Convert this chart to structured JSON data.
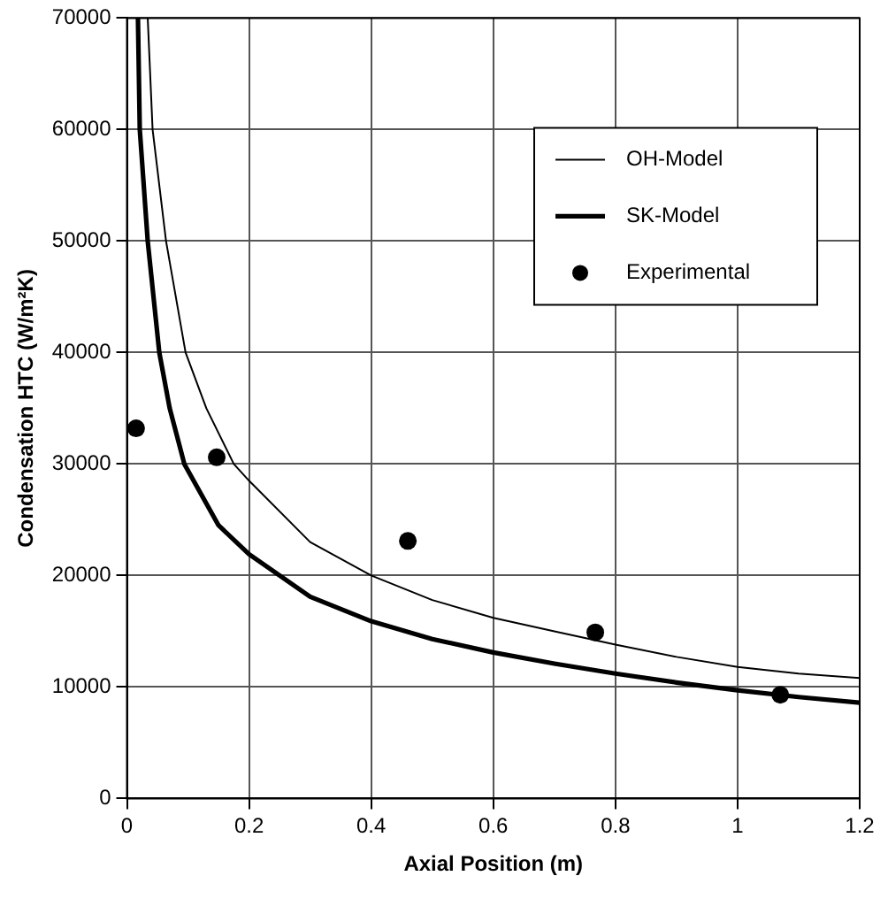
{
  "chart_data": {
    "type": "line",
    "xlabel": "Axial Position (m)",
    "ylabel": "Condensation HTC (W/m²K)",
    "xlim": [
      0,
      1.2
    ],
    "xticks": [
      0,
      0.2,
      0.4,
      0.6,
      0.8,
      1,
      1.2
    ],
    "ylim": [
      0,
      70000
    ],
    "yticks": [
      0,
      10000,
      20000,
      30000,
      40000,
      50000,
      60000,
      70000
    ],
    "grid": true,
    "legend": "top right",
    "series": [
      {
        "name": "OH-Model",
        "color": "#000000",
        "type": "line",
        "line_style": "solid",
        "marker": "none",
        "x": [
          0.034,
          0.042,
          0.064,
          0.096,
          0.13,
          0.175,
          0.2,
          0.3,
          0.4,
          0.5,
          0.6,
          0.7,
          0.8,
          0.9,
          1.0,
          1.1,
          1.2
        ],
        "values": [
          70000,
          60000,
          50000,
          40000,
          35000,
          30000,
          28500,
          23000,
          20000,
          17800,
          16200,
          15000,
          13800,
          12700,
          11800,
          11200,
          10800
        ]
      },
      {
        "name": "SK-Model",
        "color": "#000000",
        "type": "line",
        "line_style": "solid",
        "marker": "none",
        "x": [
          0.018,
          0.021,
          0.034,
          0.053,
          0.07,
          0.094,
          0.15,
          0.2,
          0.3,
          0.4,
          0.5,
          0.6,
          0.7,
          0.8,
          0.9,
          1.0,
          1.1,
          1.2
        ],
        "values": [
          70000,
          60000,
          50000,
          40000,
          35000,
          30000,
          24500,
          21900,
          18100,
          15900,
          14300,
          13100,
          12100,
          11200,
          10400,
          9700,
          9100,
          8600
        ]
      },
      {
        "name": "Experimental",
        "color": "#000000",
        "type": "scatter",
        "marker": "circle",
        "x": [
          0.015,
          0.147,
          0.46,
          0.767,
          1.07
        ],
        "values": [
          33200,
          30600,
          23100,
          14900,
          9300
        ]
      }
    ]
  }
}
